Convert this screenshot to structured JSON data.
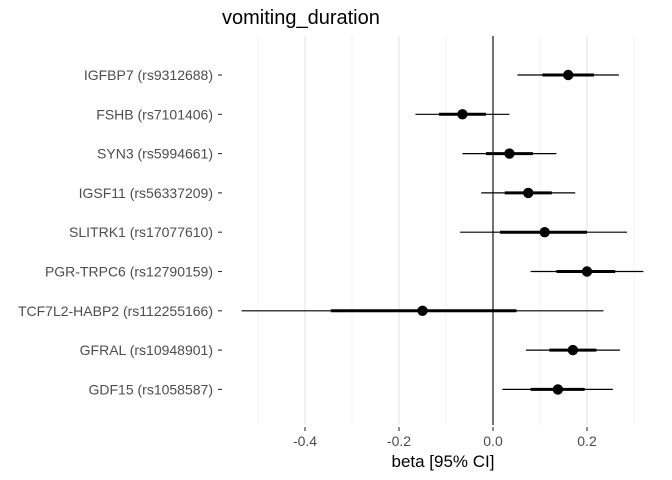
{
  "chart_data": {
    "type": "forest",
    "title": "vomiting_duration",
    "xlabel": "beta [95% CI]",
    "ylabel": "",
    "xlim": [
      -0.53,
      0.32
    ],
    "x_ticks": [
      -0.4,
      -0.2,
      0.0,
      0.2
    ],
    "x_tick_labels": [
      "-0.4",
      "-0.2",
      "0.0",
      "0.2"
    ],
    "reference_line": 0,
    "grid": "vertical",
    "legend": "none",
    "rows": [
      {
        "label": "IGFBP7 (rs9312688)",
        "beta": 0.16,
        "inner": [
          0.105,
          0.215
        ],
        "ci": [
          0.052,
          0.268
        ]
      },
      {
        "label": "FSHB (rs7101406)",
        "beta": -0.065,
        "inner": [
          -0.115,
          -0.015
        ],
        "ci": [
          -0.165,
          0.035
        ]
      },
      {
        "label": "SYN3 (rs5994661)",
        "beta": 0.035,
        "inner": [
          -0.015,
          0.085
        ],
        "ci": [
          -0.065,
          0.135
        ]
      },
      {
        "label": "IGSF11 (rs56337209)",
        "beta": 0.075,
        "inner": [
          0.025,
          0.125
        ],
        "ci": [
          -0.025,
          0.175
        ]
      },
      {
        "label": "SLITRK1 (rs17077610)",
        "beta": 0.11,
        "inner": [
          0.015,
          0.2
        ],
        "ci": [
          -0.07,
          0.285
        ]
      },
      {
        "label": "PGR-TRPC6 (rs12790159)",
        "beta": 0.2,
        "inner": [
          0.135,
          0.26
        ],
        "ci": [
          0.08,
          0.32
        ]
      },
      {
        "label": "TCF7L2-HABP2 (rs112255166)",
        "beta": -0.15,
        "inner": [
          -0.345,
          0.05
        ],
        "ci": [
          -0.535,
          0.235
        ]
      },
      {
        "label": "GFRAL (rs10948901)",
        "beta": 0.17,
        "inner": [
          0.12,
          0.22
        ],
        "ci": [
          0.07,
          0.27
        ]
      },
      {
        "label": "GDF15 (rs1058587)",
        "beta": 0.138,
        "inner": [
          0.08,
          0.195
        ],
        "ci": [
          0.02,
          0.255
        ]
      }
    ]
  }
}
